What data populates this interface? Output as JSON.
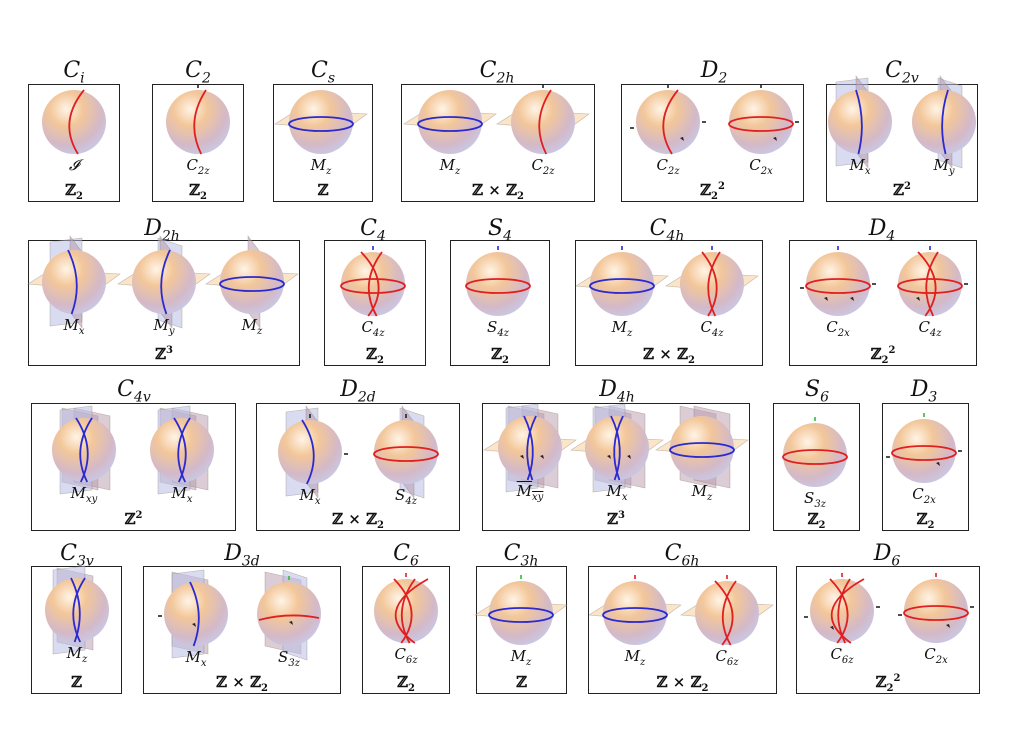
{
  "groups": [
    {
      "id": "Ci",
      "name": "C",
      "sub": "i",
      "row": 0,
      "panels": [
        {
          "op": "𝓘",
          "opsub": "",
          "kind": "ci"
        }
      ],
      "group_label": "ℤ",
      "group_sub": "2",
      "group_sup": ""
    },
    {
      "id": "C2",
      "name": "C",
      "sub": "2",
      "row": 0,
      "panels": [
        {
          "op": "C",
          "opsub": "2z",
          "kind": "c2"
        }
      ],
      "group_label": "ℤ",
      "group_sub": "2",
      "group_sup": ""
    },
    {
      "id": "Cs",
      "name": "C",
      "sub": "s",
      "row": 0,
      "panels": [
        {
          "op": "M",
          "opsub": "z",
          "kind": "mz"
        }
      ],
      "group_label": "ℤ",
      "group_sub": "",
      "group_sup": ""
    },
    {
      "id": "C2h",
      "name": "C",
      "sub": "2h",
      "row": 0,
      "panels": [
        {
          "op": "M",
          "opsub": "z",
          "kind": "mz"
        },
        {
          "op": "C",
          "opsub": "2z",
          "kind": "c2plane"
        }
      ],
      "group_label": "ℤ × ℤ",
      "group_sub": "2",
      "group_sup": ""
    },
    {
      "id": "D2",
      "name": "D",
      "sub": "2",
      "row": 0,
      "panels": [
        {
          "op": "C",
          "opsub": "2z",
          "kind": "d2z"
        },
        {
          "op": "C",
          "opsub": "2x",
          "kind": "d2x"
        }
      ],
      "group_label": "ℤ",
      "group_sub": "2",
      "group_sup": "2"
    },
    {
      "id": "C2v",
      "name": "C",
      "sub": "2v",
      "row": 0,
      "panels": [
        {
          "op": "M",
          "opsub": "x",
          "kind": "mx"
        },
        {
          "op": "M",
          "opsub": "y",
          "kind": "my"
        }
      ],
      "group_label": "ℤ",
      "group_sub": "",
      "group_sup": "2"
    },
    {
      "id": "D2h",
      "name": "D",
      "sub": "2h",
      "row": 1,
      "panels": [
        {
          "op": "M",
          "opsub": "x",
          "kind": "mxfull"
        },
        {
          "op": "M",
          "opsub": "y",
          "kind": "myfull"
        },
        {
          "op": "M",
          "opsub": "z",
          "kind": "mzfull"
        }
      ],
      "group_label": "ℤ",
      "group_sub": "",
      "group_sup": "3"
    },
    {
      "id": "C4",
      "name": "C",
      "sub": "4",
      "row": 1,
      "panels": [
        {
          "op": "C",
          "opsub": "4z",
          "kind": "c4"
        }
      ],
      "group_label": "ℤ",
      "group_sub": "2",
      "group_sup": ""
    },
    {
      "id": "S4",
      "name": "S",
      "sub": "4",
      "row": 1,
      "panels": [
        {
          "op": "S",
          "opsub": "4z",
          "kind": "s4"
        }
      ],
      "group_label": "ℤ",
      "group_sub": "2",
      "group_sup": ""
    },
    {
      "id": "C4h",
      "name": "C",
      "sub": "4h",
      "row": 1,
      "panels": [
        {
          "op": "M",
          "opsub": "z",
          "kind": "mz4"
        },
        {
          "op": "C",
          "opsub": "4z",
          "kind": "c4plane"
        }
      ],
      "group_label": "ℤ × ℤ",
      "group_sub": "2",
      "group_sup": ""
    },
    {
      "id": "D4",
      "name": "D",
      "sub": "4",
      "row": 1,
      "panels": [
        {
          "op": "C",
          "opsub": "2x",
          "kind": "d4x"
        },
        {
          "op": "C",
          "opsub": "4z",
          "kind": "d4z"
        }
      ],
      "group_label": "ℤ",
      "group_sub": "2",
      "group_sup": "2"
    },
    {
      "id": "C4v",
      "name": "C",
      "sub": "4v",
      "row": 2,
      "panels": [
        {
          "op": "M",
          "opsub": "xy",
          "kind": "c4v"
        },
        {
          "op": "M",
          "opsub": "x",
          "kind": "c4v"
        }
      ],
      "group_label": "ℤ",
      "group_sub": "",
      "group_sup": "2"
    },
    {
      "id": "D2d",
      "name": "D",
      "sub": "2d",
      "row": 2,
      "panels": [
        {
          "op": "M",
          "opsub": "x",
          "kind": "d2dm"
        },
        {
          "op": "S",
          "opsub": "4z",
          "kind": "d2ds"
        }
      ],
      "group_label": "ℤ × ℤ",
      "group_sub": "2",
      "group_sup": ""
    },
    {
      "id": "D4h",
      "name": "D",
      "sub": "4h",
      "row": 2,
      "panels": [
        {
          "op": "M",
          "opsub": "xy",
          "kind": "d4h",
          "overline": true
        },
        {
          "op": "M",
          "opsub": "x",
          "kind": "d4h"
        },
        {
          "op": "M",
          "opsub": "z",
          "kind": "d4hz"
        }
      ],
      "group_label": "ℤ",
      "group_sub": "",
      "group_sup": "3"
    },
    {
      "id": "S6",
      "name": "S",
      "sub": "6",
      "row": 2,
      "panels": [
        {
          "op": "S",
          "opsub": "3z",
          "kind": "s6"
        }
      ],
      "group_label": "ℤ",
      "group_sub": "2",
      "group_sup": ""
    },
    {
      "id": "D3",
      "name": "D",
      "sub": "3",
      "row": 2,
      "panels": [
        {
          "op": "C",
          "opsub": "2x",
          "kind": "d3"
        }
      ],
      "group_label": "ℤ",
      "group_sub": "2",
      "group_sup": ""
    },
    {
      "id": "C3v",
      "name": "C",
      "sub": "3v",
      "row": 3,
      "panels": [
        {
          "op": "M",
          "opsub": "z",
          "kind": "c3v"
        }
      ],
      "group_label": "ℤ",
      "group_sub": "",
      "group_sup": ""
    },
    {
      "id": "D3d",
      "name": "D",
      "sub": "3d",
      "row": 3,
      "panels": [
        {
          "op": "M",
          "opsub": "x",
          "kind": "d3dm"
        },
        {
          "op": "S",
          "opsub": "3z",
          "kind": "d3ds"
        }
      ],
      "group_label": "ℤ × ℤ",
      "group_sub": "2",
      "group_sup": ""
    },
    {
      "id": "C6",
      "name": "C",
      "sub": "6",
      "row": 3,
      "panels": [
        {
          "op": "C",
          "opsub": "6z",
          "kind": "c6"
        }
      ],
      "group_label": "ℤ",
      "group_sub": "2",
      "group_sup": ""
    },
    {
      "id": "C3h",
      "name": "C",
      "sub": "3h",
      "row": 3,
      "panels": [
        {
          "op": "M",
          "opsub": "z",
          "kind": "c3h"
        }
      ],
      "group_label": "ℤ",
      "group_sub": "",
      "group_sup": ""
    },
    {
      "id": "C6h",
      "name": "C",
      "sub": "6h",
      "row": 3,
      "panels": [
        {
          "op": "M",
          "opsub": "z",
          "kind": "c6hm"
        },
        {
          "op": "C",
          "opsub": "6z",
          "kind": "c6hc"
        }
      ],
      "group_label": "ℤ × ℤ",
      "group_sub": "2",
      "group_sup": ""
    },
    {
      "id": "D6",
      "name": "D",
      "sub": "6",
      "row": 3,
      "panels": [
        {
          "op": "C",
          "opsub": "6z",
          "kind": "d6z"
        },
        {
          "op": "C",
          "opsub": "2x",
          "kind": "d6x"
        }
      ],
      "group_label": "ℤ",
      "group_sub": "2",
      "group_sup": "2"
    }
  ],
  "colors": {
    "sphere_top": "#f3c79a",
    "sphere_bottom": "#c9c9e6",
    "red_line": "#e02020",
    "blue_line": "#2a2ad0",
    "plane_orange": "#f6cf9c",
    "plane_blue": "#b9bfe6",
    "plane_purple": "#b79aae",
    "axis_green": "#33bb33"
  }
}
